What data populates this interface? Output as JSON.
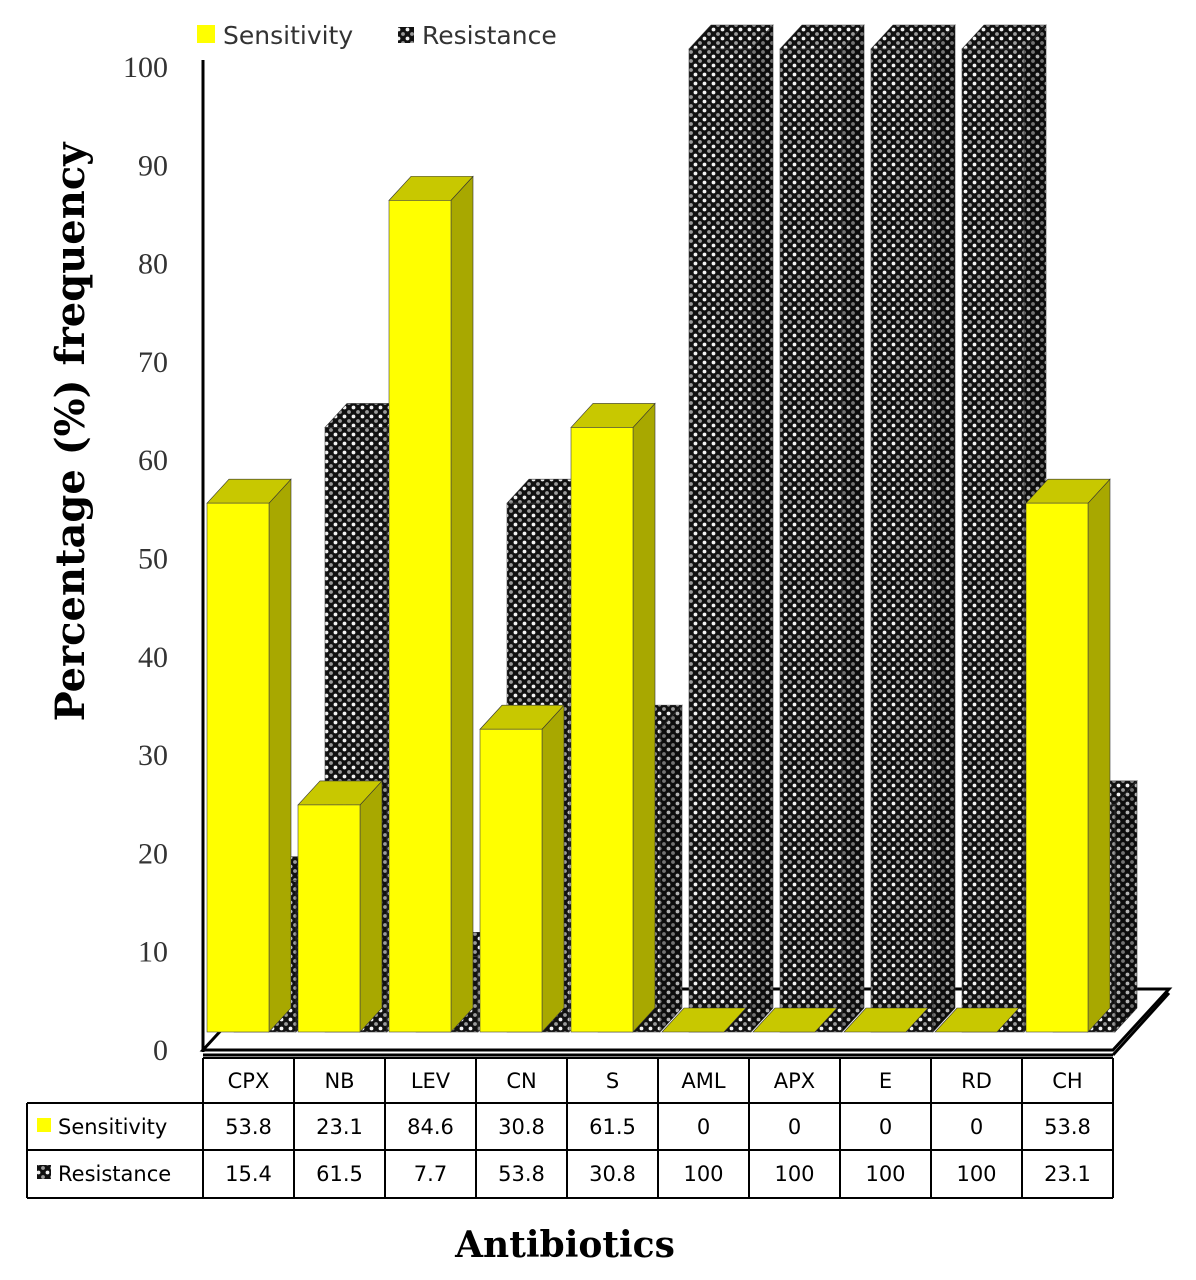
{
  "chart_data": {
    "type": "bar",
    "categories": [
      "CPX",
      "NB",
      "LEV",
      "CN",
      "S",
      "AML",
      "APX",
      "E",
      "RD",
      "CH"
    ],
    "series": [
      {
        "name": "Sensitivity",
        "values": [
          53.8,
          23.1,
          84.6,
          30.8,
          61.5,
          0,
          0,
          0,
          0,
          53.8
        ],
        "color": "#ffff00"
      },
      {
        "name": "Resistance",
        "values": [
          15.4,
          61.5,
          7.7,
          53.8,
          30.8,
          100,
          100,
          100,
          100,
          23.1
        ],
        "color": "#1a1a1a"
      }
    ],
    "value_labels": {
      "Sensitivity": [
        "53.8",
        "23.1",
        "84.6",
        "30.8",
        "61.5",
        "0",
        "0",
        "0",
        "0",
        "53.8"
      ],
      "Resistance": [
        "15.4",
        "61.5",
        "7.7",
        "53.8",
        "30.8",
        "100",
        "100",
        "100",
        "100",
        "23.1"
      ]
    },
    "title": "",
    "xlabel": "Antibiotics",
    "ylabel": "Percentage (%) frequency",
    "ylim": [
      0,
      100
    ],
    "yticks": [
      "0",
      "10",
      "20",
      "30",
      "40",
      "50",
      "60",
      "70",
      "80",
      "90",
      "100"
    ],
    "legend_position": "top",
    "grid": false,
    "style": "3d-column-with-data-table"
  }
}
